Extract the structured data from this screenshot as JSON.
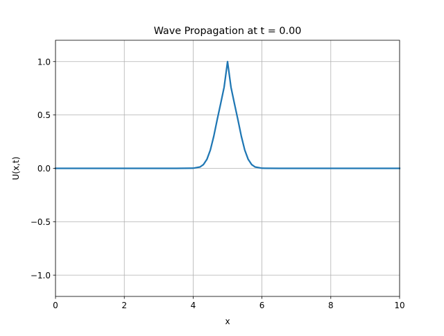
{
  "chart_data": {
    "type": "line",
    "title": "Wave Propagation at t = 0.00",
    "xlabel": "x",
    "ylabel": "U(x,t)",
    "xlim": [
      0,
      10
    ],
    "ylim": [
      -1.2,
      1.2
    ],
    "xticks": [
      0,
      2,
      4,
      6,
      8,
      10
    ],
    "xtick_labels": [
      "0",
      "2",
      "4",
      "6",
      "8",
      "10"
    ],
    "yticks": [
      -1.0,
      -0.5,
      0.0,
      0.5,
      1.0
    ],
    "ytick_labels": [
      "−1.0",
      "−0.5",
      "0.0",
      "0.5",
      "1.0"
    ],
    "grid": true,
    "series": [
      {
        "color": "#1f77b4",
        "x": [
          0,
          0.5,
          1,
          1.5,
          2,
          2.5,
          3,
          3.5,
          4,
          4.2,
          4.3,
          4.4,
          4.5,
          4.6,
          4.7,
          4.8,
          4.9,
          5.0,
          5.1,
          5.2,
          5.3,
          5.4,
          5.5,
          5.6,
          5.7,
          5.8,
          6,
          6.5,
          7,
          7.5,
          8,
          8.5,
          9,
          9.5,
          10
        ],
        "y": [
          0,
          0,
          0,
          0,
          0,
          0,
          0,
          0,
          0.0013,
          0.0131,
          0.0356,
          0.0842,
          0.1713,
          0.3012,
          0.4578,
          0.6065,
          0.7598,
          1.0,
          0.7598,
          0.6065,
          0.4578,
          0.3012,
          0.1713,
          0.0842,
          0.0356,
          0.0131,
          0.0013,
          0,
          0,
          0,
          0,
          0,
          0,
          0,
          0
        ]
      }
    ]
  }
}
